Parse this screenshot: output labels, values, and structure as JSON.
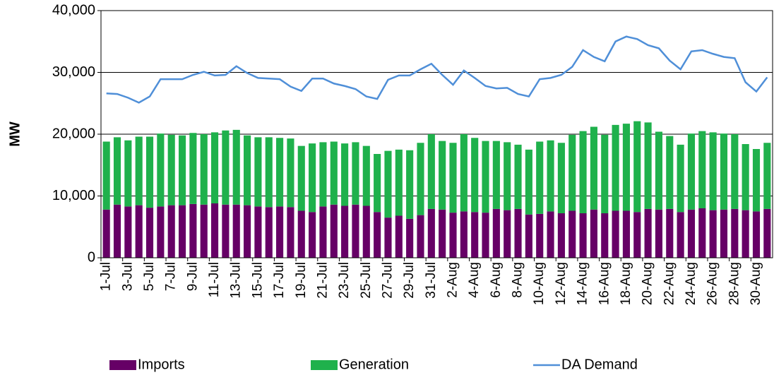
{
  "chart_data": {
    "type": "stacked_bar_line",
    "y_label": "MW",
    "categories": [
      "1-Jul",
      null,
      "3-Jul",
      null,
      "5-Jul",
      null,
      "7-Jul",
      null,
      "9-Jul",
      null,
      "11-Jul",
      null,
      "13-Jul",
      null,
      "15-Jul",
      null,
      "17-Jul",
      null,
      "19-Jul",
      null,
      "21-Jul",
      null,
      "23-Jul",
      null,
      "25-Jul",
      null,
      "27-Jul",
      null,
      "29-Jul",
      null,
      "31-Jul",
      null,
      "2-Aug",
      null,
      "4-Aug",
      null,
      "6-Aug",
      null,
      "8-Aug",
      null,
      "10-Aug",
      null,
      "12-Aug",
      null,
      "14-Aug",
      null,
      "16-Aug",
      null,
      "18-Aug",
      null,
      "20-Aug",
      null,
      "22-Aug",
      null,
      "24-Aug",
      null,
      "26-Aug",
      null,
      "28-Aug",
      null,
      "30-Aug",
      null
    ],
    "series": [
      {
        "name": "Imports",
        "color": "#660066",
        "kind": "bar",
        "values": [
          7800,
          8600,
          8300,
          8500,
          8100,
          8300,
          8500,
          8500,
          8700,
          8600,
          8800,
          8600,
          8600,
          8500,
          8300,
          8200,
          8300,
          8200,
          7600,
          7400,
          8300,
          8600,
          8400,
          8600,
          8400,
          7400,
          6500,
          6800,
          6300,
          6900,
          7900,
          7800,
          7300,
          7500,
          7400,
          7300,
          7900,
          7700,
          7900,
          7000,
          7100,
          7500,
          7200,
          7600,
          7200,
          7800,
          7200,
          7600,
          7600,
          7400,
          7900,
          7800,
          7900,
          7400,
          7800,
          8000,
          7700,
          7800,
          7900,
          7700,
          7500,
          7900
        ]
      },
      {
        "name": "Generation",
        "color": "#1fb14c",
        "kind": "bar",
        "values": [
          11000,
          10900,
          10700,
          11100,
          11500,
          11800,
          11400,
          11300,
          11500,
          11400,
          11500,
          12000,
          12100,
          11300,
          11200,
          11300,
          11100,
          11100,
          10500,
          11100,
          10400,
          10200,
          10100,
          10100,
          9700,
          9400,
          10800,
          10700,
          11100,
          11700,
          12100,
          11100,
          11300,
          12500,
          12000,
          11600,
          11000,
          11000,
          10400,
          10500,
          11700,
          11500,
          11400,
          12300,
          13300,
          13400,
          12700,
          13900,
          14100,
          14700,
          14000,
          12600,
          11800,
          10900,
          12300,
          12500,
          12600,
          12300,
          12100,
          10700,
          10100,
          10700
        ]
      },
      {
        "name": "DA Demand",
        "color": "#4f8fd8",
        "kind": "line",
        "values": [
          26600,
          26500,
          25900,
          25100,
          26100,
          28900,
          28900,
          28900,
          29600,
          30100,
          29500,
          29600,
          31000,
          29900,
          29100,
          29000,
          28900,
          27700,
          27000,
          29000,
          29000,
          28200,
          27800,
          27300,
          26100,
          25700,
          28800,
          29500,
          29500,
          30500,
          31400,
          29600,
          28000,
          30300,
          29100,
          27800,
          27400,
          27500,
          26500,
          26100,
          28900,
          29100,
          29600,
          30900,
          33600,
          32500,
          31800,
          35000,
          35800,
          35400,
          34400,
          33900,
          31900,
          30500,
          33400,
          33600,
          33000,
          32500,
          32300,
          28400,
          26900,
          29200
        ]
      }
    ],
    "ylim": [
      0,
      40000
    ],
    "yticks": [
      0,
      {
        "value": 10000,
        "label": "10,000"
      },
      {
        "value": 20000,
        "label": "20,000"
      },
      {
        "value": 30000,
        "label": "30,000"
      },
      {
        "value": 40000,
        "label": "40,000"
      }
    ],
    "grid": true,
    "legend": "bottom"
  }
}
